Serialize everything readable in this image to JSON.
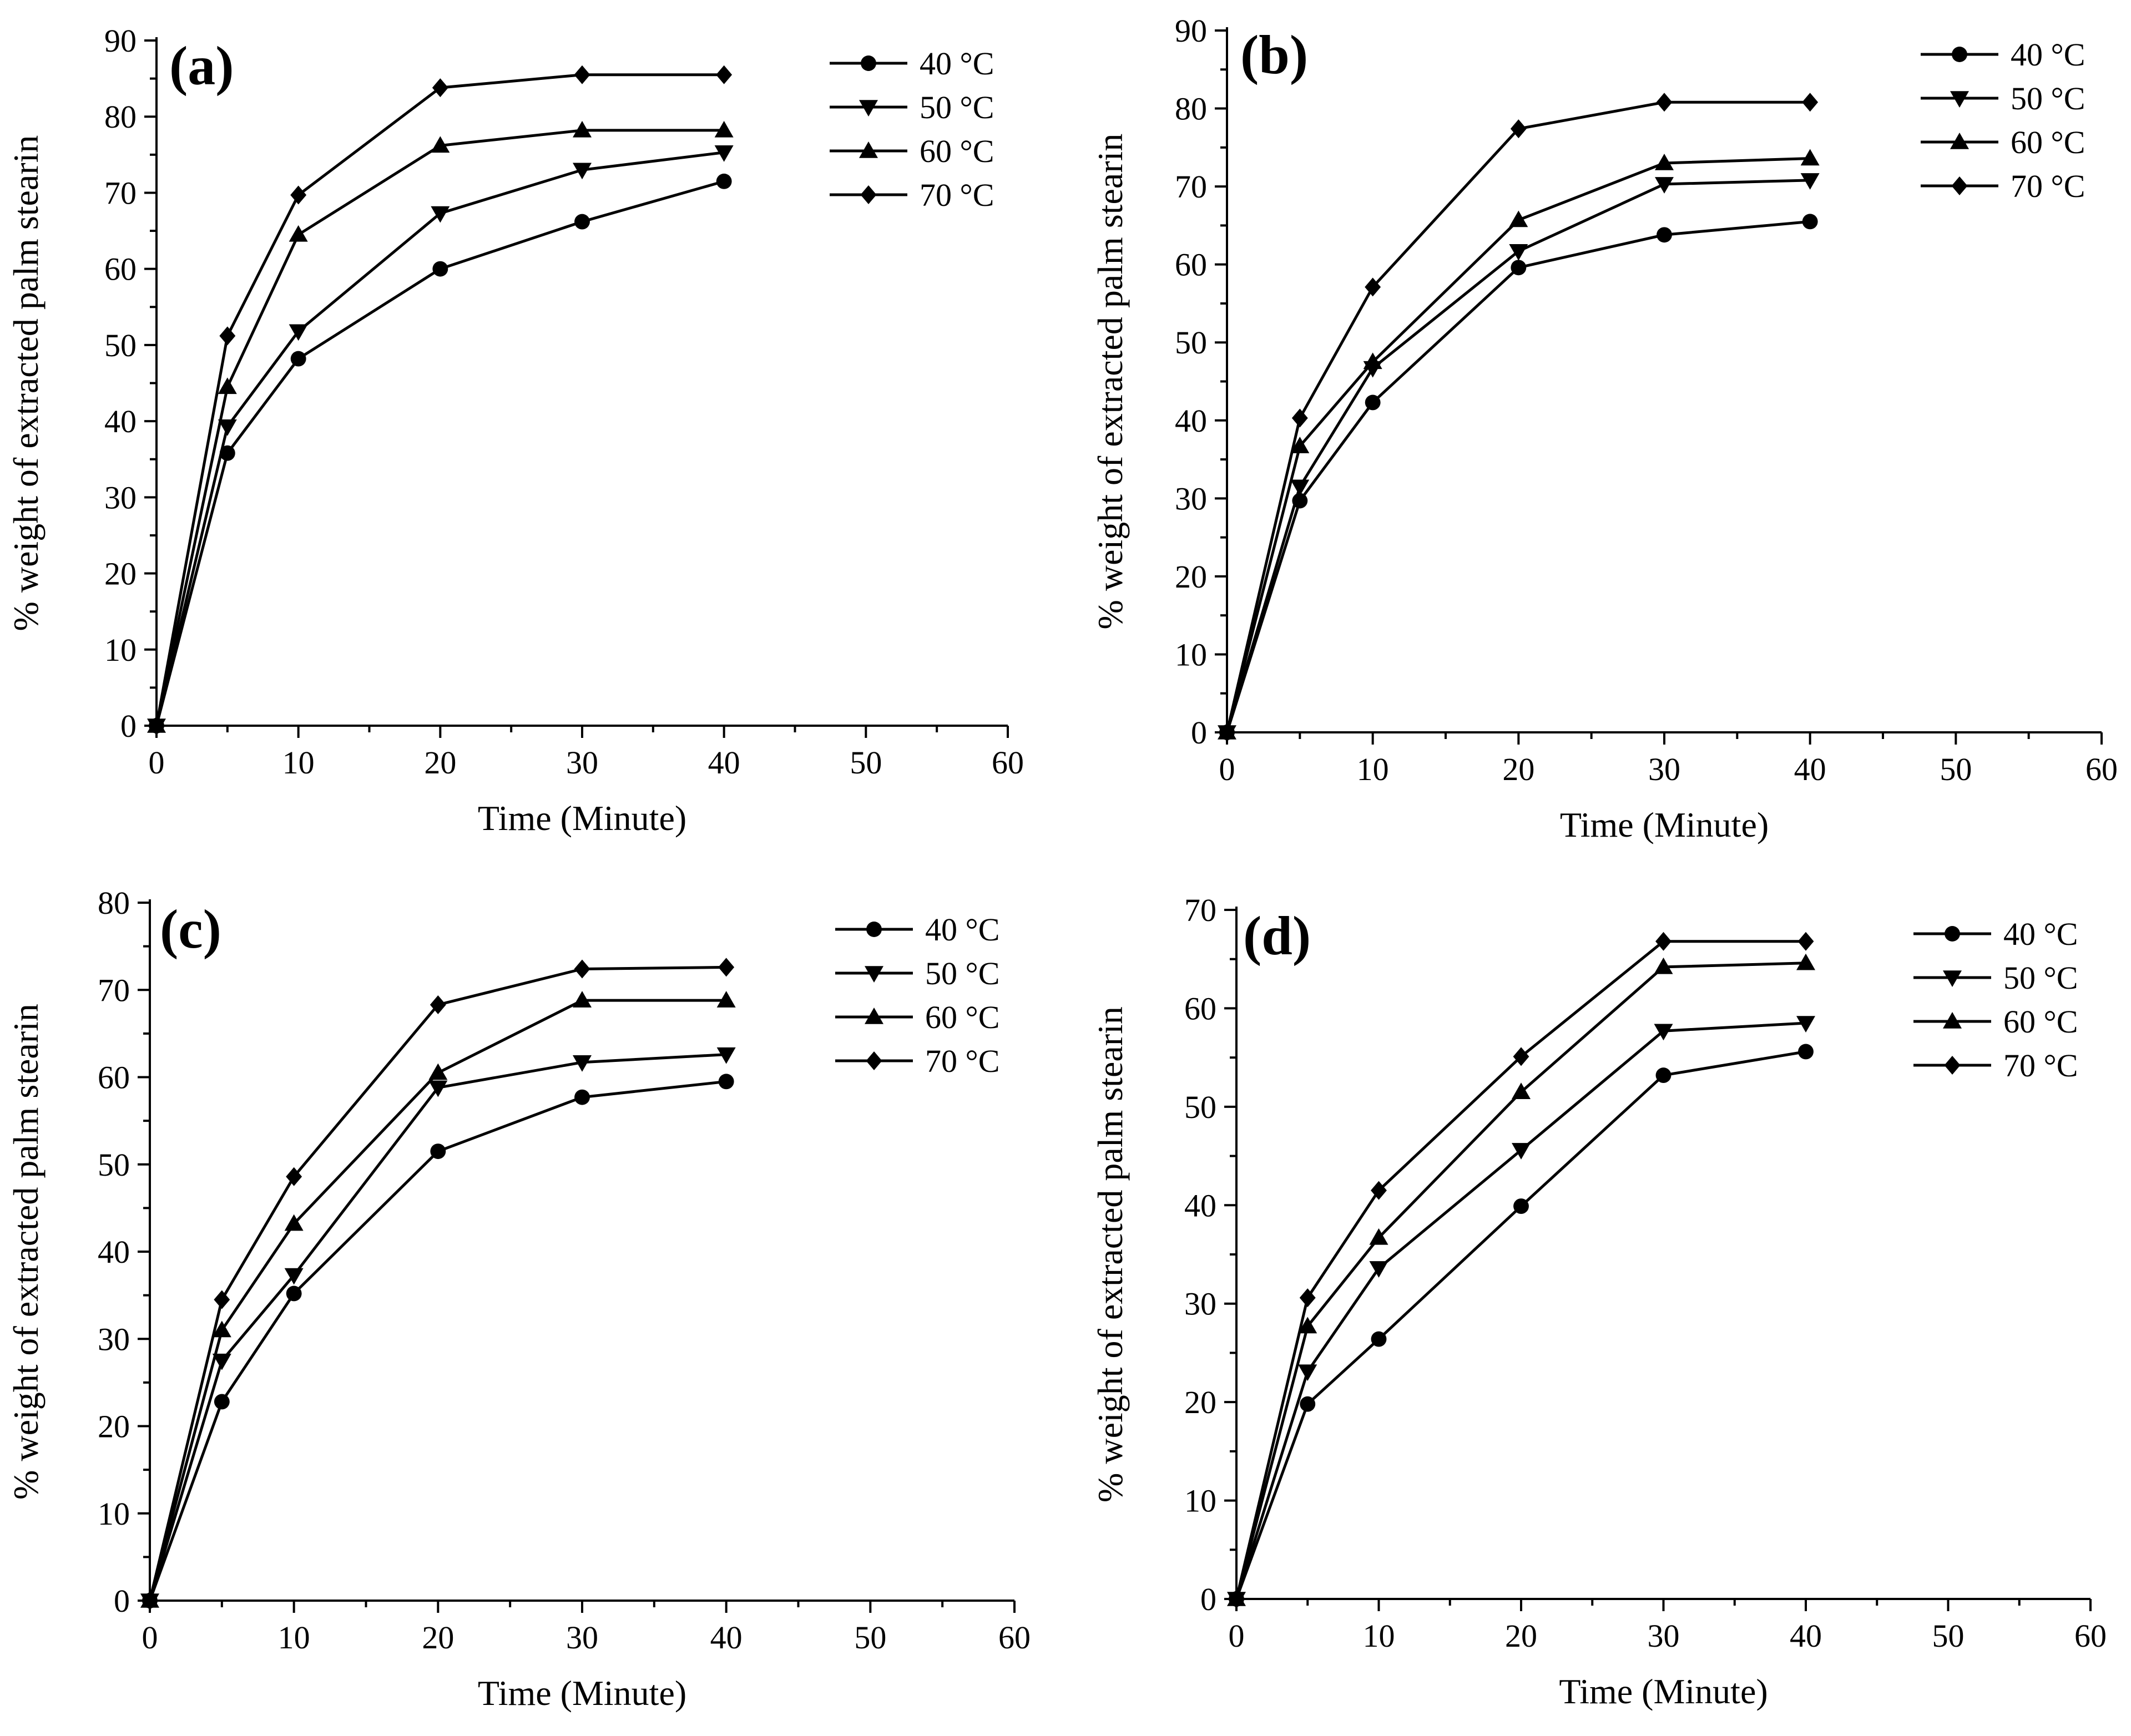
{
  "chart_data": [
    {
      "panel": "(a)",
      "type": "line",
      "xlabel": "Time (Minute)",
      "ylabel": "% weight of extracted palm stearin",
      "xlim": [
        0,
        60
      ],
      "ylim": [
        0,
        90
      ],
      "xticks": [
        0,
        10,
        20,
        30,
        40,
        50,
        60
      ],
      "yticks": [
        0,
        10,
        20,
        30,
        40,
        50,
        60,
        70,
        80,
        90
      ],
      "grid": false,
      "legend_position": "top-right",
      "x": [
        0,
        5,
        10,
        20,
        30,
        40
      ],
      "series": [
        {
          "name": "40 °C",
          "marker": "circle",
          "values": [
            0,
            35.8,
            48.2,
            60.0,
            66.2,
            71.5
          ]
        },
        {
          "name": "50 °C",
          "marker": "triangle-down",
          "values": [
            0,
            39.3,
            51.8,
            67.3,
            73.0,
            75.3
          ]
        },
        {
          "name": "60 °C",
          "marker": "triangle-up",
          "values": [
            0,
            44.5,
            64.5,
            76.2,
            78.2,
            78.2
          ]
        },
        {
          "name": "70 °C",
          "marker": "diamond",
          "values": [
            0,
            51.2,
            69.7,
            83.8,
            85.5,
            85.5
          ]
        }
      ]
    },
    {
      "panel": "(b)",
      "type": "line",
      "xlabel": "Time (Minute)",
      "ylabel": "% weight of extracted palm stearin",
      "xlim": [
        0,
        60
      ],
      "ylim": [
        0,
        90
      ],
      "xticks": [
        0,
        10,
        20,
        30,
        40,
        50,
        60
      ],
      "yticks": [
        0,
        10,
        20,
        30,
        40,
        50,
        60,
        70,
        80,
        90
      ],
      "grid": false,
      "legend_position": "top-right",
      "x": [
        0,
        5,
        10,
        20,
        30,
        40
      ],
      "series": [
        {
          "name": "40 °C",
          "marker": "circle",
          "values": [
            0,
            29.7,
            42.3,
            59.6,
            63.8,
            65.5
          ]
        },
        {
          "name": "50 °C",
          "marker": "triangle-down",
          "values": [
            0,
            31.5,
            46.7,
            61.7,
            70.3,
            70.8
          ]
        },
        {
          "name": "60 °C",
          "marker": "triangle-up",
          "values": [
            0,
            36.7,
            47.5,
            65.7,
            73.0,
            73.6
          ]
        },
        {
          "name": "70 °C",
          "marker": "diamond",
          "values": [
            0,
            40.3,
            57.1,
            77.4,
            80.8,
            80.8
          ]
        }
      ]
    },
    {
      "panel": "(c)",
      "type": "line",
      "xlabel": "Time (Minute)",
      "ylabel": "% weight of extracted palm stearin",
      "xlim": [
        0,
        60
      ],
      "ylim": [
        0,
        80
      ],
      "xticks": [
        0,
        10,
        20,
        30,
        40,
        50,
        60
      ],
      "yticks": [
        0,
        10,
        20,
        30,
        40,
        50,
        60,
        70,
        80
      ],
      "grid": false,
      "legend_position": "top-right",
      "x": [
        0,
        5,
        10,
        20,
        30,
        40
      ],
      "series": [
        {
          "name": "40 °C",
          "marker": "circle",
          "values": [
            0,
            22.8,
            35.2,
            51.5,
            57.7,
            59.5
          ]
        },
        {
          "name": "50 °C",
          "marker": "triangle-down",
          "values": [
            0,
            27.5,
            37.3,
            58.8,
            61.7,
            62.6
          ]
        },
        {
          "name": "60 °C",
          "marker": "triangle-up",
          "values": [
            0,
            31.0,
            43.2,
            60.5,
            68.8,
            68.8
          ]
        },
        {
          "name": "70 °C",
          "marker": "diamond",
          "values": [
            0,
            34.5,
            48.6,
            68.3,
            72.4,
            72.6
          ]
        }
      ]
    },
    {
      "panel": "(d)",
      "type": "line",
      "xlabel": "Time (Minute)",
      "ylabel": "% weight of extracted palm stearin",
      "xlim": [
        0,
        60
      ],
      "ylim": [
        0,
        70
      ],
      "xticks": [
        0,
        10,
        20,
        30,
        40,
        50,
        60
      ],
      "yticks": [
        0,
        10,
        20,
        30,
        40,
        50,
        60,
        70
      ],
      "grid": false,
      "legend_position": "top-right",
      "x": [
        0,
        5,
        10,
        20,
        30,
        40
      ],
      "series": [
        {
          "name": "40 °C",
          "marker": "circle",
          "values": [
            0,
            19.8,
            26.4,
            39.9,
            53.2,
            55.6
          ]
        },
        {
          "name": "50 °C",
          "marker": "triangle-down",
          "values": [
            0,
            23.1,
            33.6,
            45.6,
            57.7,
            58.5
          ]
        },
        {
          "name": "60 °C",
          "marker": "triangle-up",
          "values": [
            0,
            27.7,
            36.7,
            51.5,
            64.2,
            64.6
          ]
        },
        {
          "name": "70 °C",
          "marker": "diamond",
          "values": [
            0,
            30.6,
            41.5,
            55.1,
            66.8,
            66.8
          ]
        }
      ]
    }
  ]
}
